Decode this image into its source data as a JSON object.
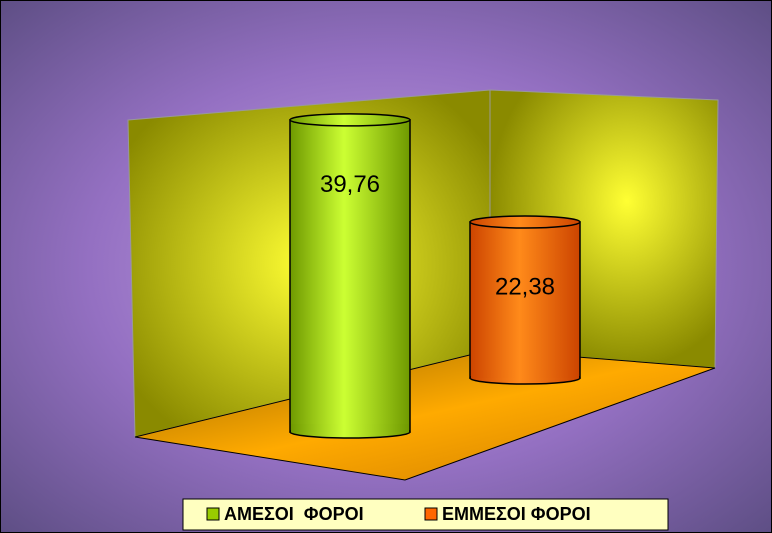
{
  "chart_data": {
    "type": "cylinder",
    "series": [
      {
        "name": "ΑΜΕΣΟΙ  ΦΟΡΟΙ",
        "color": "#99cc00",
        "values": [
          39.76
        ],
        "value_labels": [
          "39,76"
        ]
      },
      {
        "name": "ΕΜΜΕΣΟΙ ΦΟΡΟΙ",
        "color": "#ff6600",
        "values": [
          22.38
        ],
        "value_labels": [
          "22,38"
        ]
      }
    ],
    "legend": "bottom"
  }
}
